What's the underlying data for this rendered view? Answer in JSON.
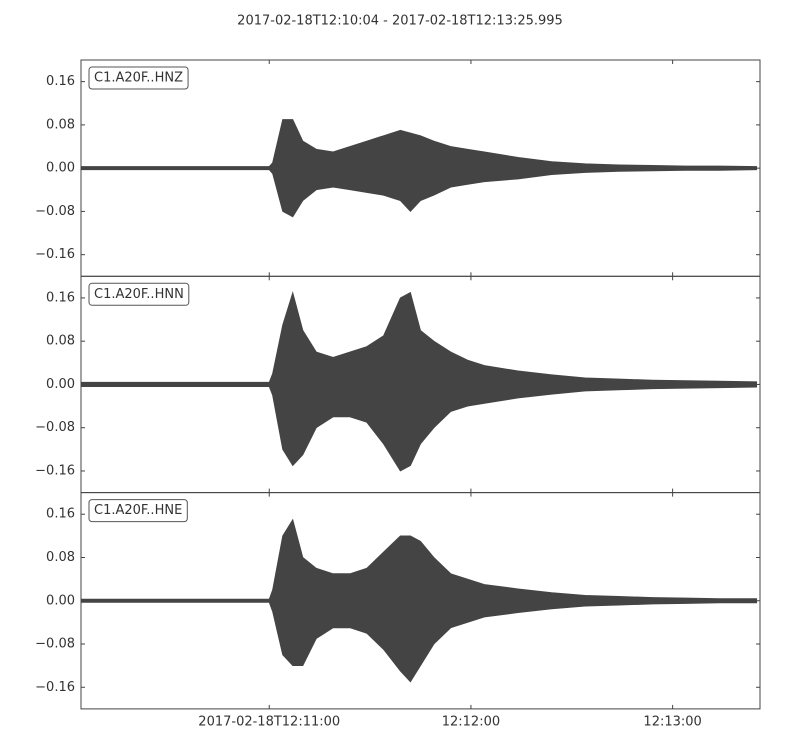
{
  "chart_data": [
    {
      "type": "band",
      "title": "2017-02-18T12:10:04  -  2017-02-18T12:13:25.995",
      "label": "C1.A20F..HNZ",
      "color": "#444444",
      "ylim": [
        -0.2,
        0.2
      ],
      "yticks": [
        0.16,
        0.08,
        {
          "value": 0,
          "label": "0.00"
        },
        {
          "value": -0.08,
          "label": "−0.08"
        },
        {
          "value": -0.16,
          "label": "−0.16"
        }
      ],
      "x": [
        "12:10:04",
        "12:10:14",
        "12:10:24",
        "12:10:34",
        "12:10:44",
        "12:10:54",
        "12:11:00",
        "12:11:01",
        "12:11:04",
        "12:11:07",
        "12:11:10",
        "12:11:14",
        "12:11:19",
        "12:11:24",
        "12:11:29",
        "12:11:34",
        "12:11:39",
        "12:11:42",
        "12:11:45",
        "12:11:49",
        "12:11:54",
        "12:11:59",
        "12:12:04",
        "12:12:14",
        "12:12:24",
        "12:12:34",
        "12:12:44",
        "12:12:54",
        "12:13:04",
        "12:13:14",
        "12:13:25"
      ],
      "high": [
        0.003,
        0.003,
        0.003,
        0.003,
        0.003,
        0.003,
        0.003,
        0.01,
        0.09,
        0.09,
        0.05,
        0.035,
        0.03,
        0.04,
        0.05,
        0.06,
        0.07,
        0.065,
        0.06,
        0.05,
        0.04,
        0.035,
        0.03,
        0.02,
        0.012,
        0.008,
        0.006,
        0.005,
        0.004,
        0.004,
        0.003
      ],
      "low": [
        -0.003,
        -0.003,
        -0.003,
        -0.003,
        -0.003,
        -0.003,
        -0.003,
        -0.01,
        -0.08,
        -0.09,
        -0.06,
        -0.04,
        -0.035,
        -0.04,
        -0.045,
        -0.05,
        -0.06,
        -0.08,
        -0.06,
        -0.05,
        -0.035,
        -0.03,
        -0.025,
        -0.02,
        -0.012,
        -0.008,
        -0.006,
        -0.005,
        -0.004,
        -0.004,
        -0.003
      ]
    },
    {
      "type": "band",
      "label": "C1.A20F..HNN",
      "color": "#444444",
      "ylim": [
        -0.2,
        0.2
      ],
      "yticks": [
        0.16,
        0.08,
        {
          "value": 0,
          "label": "0.00"
        },
        {
          "value": -0.08,
          "label": "−0.08"
        },
        {
          "value": -0.16,
          "label": "−0.16"
        }
      ],
      "x": [
        "12:10:04",
        "12:10:14",
        "12:10:24",
        "12:10:34",
        "12:10:44",
        "12:10:54",
        "12:11:00",
        "12:11:01",
        "12:11:04",
        "12:11:07",
        "12:11:10",
        "12:11:14",
        "12:11:19",
        "12:11:24",
        "12:11:29",
        "12:11:34",
        "12:11:39",
        "12:11:42",
        "12:11:45",
        "12:11:49",
        "12:11:54",
        "12:11:59",
        "12:12:04",
        "12:12:14",
        "12:12:24",
        "12:12:34",
        "12:12:44",
        "12:12:54",
        "12:13:04",
        "12:13:14",
        "12:13:25"
      ],
      "high": [
        0.004,
        0.004,
        0.004,
        0.004,
        0.004,
        0.004,
        0.004,
        0.02,
        0.11,
        0.17,
        0.1,
        0.06,
        0.05,
        0.06,
        0.07,
        0.09,
        0.16,
        0.17,
        0.1,
        0.08,
        0.06,
        0.045,
        0.035,
        0.025,
        0.018,
        0.012,
        0.01,
        0.008,
        0.007,
        0.006,
        0.005
      ],
      "low": [
        -0.004,
        -0.004,
        -0.004,
        -0.004,
        -0.004,
        -0.004,
        -0.004,
        -0.02,
        -0.12,
        -0.15,
        -0.13,
        -0.08,
        -0.06,
        -0.06,
        -0.07,
        -0.11,
        -0.16,
        -0.15,
        -0.11,
        -0.08,
        -0.05,
        -0.04,
        -0.035,
        -0.025,
        -0.018,
        -0.012,
        -0.01,
        -0.008,
        -0.007,
        -0.006,
        -0.005
      ]
    },
    {
      "type": "band",
      "label": "C1.A20F..HNE",
      "color": "#444444",
      "ylim": [
        -0.2,
        0.2
      ],
      "yticks": [
        0.16,
        0.08,
        {
          "value": 0,
          "label": "0.00"
        },
        {
          "value": -0.08,
          "label": "−0.08"
        },
        {
          "value": -0.16,
          "label": "−0.16"
        }
      ],
      "xlim": [
        "12:10:04",
        "12:13:25.995"
      ],
      "xticks": [
        {
          "value": "12:11:00",
          "label": "2017-02-18T12:11:00"
        },
        {
          "value": "12:12:00",
          "label": "12:12:00"
        },
        {
          "value": "12:13:00",
          "label": "12:13:00"
        }
      ],
      "x": [
        "12:10:04",
        "12:10:14",
        "12:10:24",
        "12:10:34",
        "12:10:44",
        "12:10:54",
        "12:11:00",
        "12:11:01",
        "12:11:04",
        "12:11:07",
        "12:11:10",
        "12:11:14",
        "12:11:19",
        "12:11:24",
        "12:11:29",
        "12:11:34",
        "12:11:39",
        "12:11:42",
        "12:11:45",
        "12:11:49",
        "12:11:54",
        "12:11:59",
        "12:12:04",
        "12:12:14",
        "12:12:24",
        "12:12:34",
        "12:12:44",
        "12:12:54",
        "12:13:04",
        "12:13:14",
        "12:13:25"
      ],
      "high": [
        0.003,
        0.003,
        0.003,
        0.003,
        0.003,
        0.003,
        0.003,
        0.02,
        0.12,
        0.15,
        0.08,
        0.06,
        0.05,
        0.05,
        0.06,
        0.09,
        0.12,
        0.12,
        0.11,
        0.08,
        0.05,
        0.04,
        0.03,
        0.022,
        0.015,
        0.01,
        0.008,
        0.006,
        0.005,
        0.004,
        0.004
      ],
      "low": [
        -0.003,
        -0.003,
        -0.003,
        -0.003,
        -0.003,
        -0.003,
        -0.003,
        -0.02,
        -0.1,
        -0.12,
        -0.12,
        -0.07,
        -0.05,
        -0.05,
        -0.06,
        -0.09,
        -0.13,
        -0.15,
        -0.12,
        -0.08,
        -0.05,
        -0.04,
        -0.03,
        -0.022,
        -0.015,
        -0.01,
        -0.008,
        -0.006,
        -0.005,
        -0.004,
        -0.004
      ]
    }
  ]
}
